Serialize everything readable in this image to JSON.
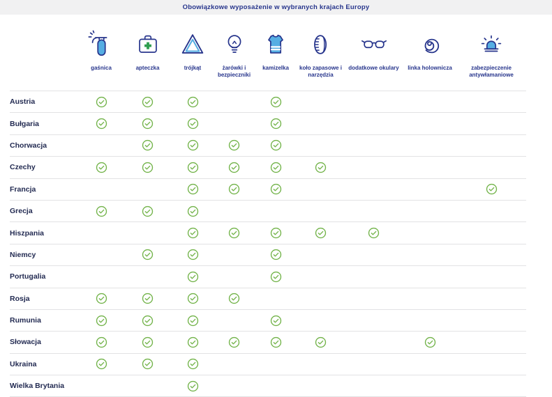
{
  "chart_data": {
    "type": "table",
    "title": "Obowiązkowe wyposażenie w wybranych krajach Europy",
    "columns": [
      {
        "label": "gaśnica",
        "icon": "fire-extinguisher-icon"
      },
      {
        "label": "apteczka",
        "icon": "first-aid-kit-icon"
      },
      {
        "label": "trójkąt",
        "icon": "warning-triangle-icon"
      },
      {
        "label": "żarówki i bezpieczniki",
        "icon": "light-bulb-icon"
      },
      {
        "label": "kamizelka",
        "icon": "safety-vest-icon"
      },
      {
        "label": "koło zapasowe i narzędzia",
        "icon": "spare-wheel-icon"
      },
      {
        "label": "dodatkowe okulary",
        "icon": "spare-glasses-icon"
      },
      {
        "label": "linka holownicza",
        "icon": "tow-rope-icon"
      },
      {
        "label": "zabezpieczenie antywłamaniowe",
        "icon": "anti-theft-alarm-icon"
      }
    ],
    "rows": [
      {
        "country": "Austria",
        "checks": [
          1,
          1,
          1,
          0,
          1,
          0,
          0,
          0,
          0
        ]
      },
      {
        "country": "Bułgaria",
        "checks": [
          1,
          1,
          1,
          0,
          1,
          0,
          0,
          0,
          0
        ]
      },
      {
        "country": "Chorwacja",
        "checks": [
          0,
          1,
          1,
          1,
          1,
          0,
          0,
          0,
          0
        ]
      },
      {
        "country": "Czechy",
        "checks": [
          1,
          1,
          1,
          1,
          1,
          1,
          0,
          0,
          0
        ]
      },
      {
        "country": "Francja",
        "checks": [
          0,
          0,
          1,
          1,
          1,
          0,
          0,
          0,
          1
        ]
      },
      {
        "country": "Grecja",
        "checks": [
          1,
          1,
          1,
          0,
          0,
          0,
          0,
          0,
          0
        ]
      },
      {
        "country": "Hiszpania",
        "checks": [
          0,
          0,
          1,
          1,
          1,
          1,
          1,
          0,
          0
        ]
      },
      {
        "country": "Niemcy",
        "checks": [
          0,
          1,
          1,
          0,
          1,
          0,
          0,
          0,
          0
        ]
      },
      {
        "country": "Portugalia",
        "checks": [
          0,
          0,
          1,
          0,
          1,
          0,
          0,
          0,
          0
        ]
      },
      {
        "country": "Rosja",
        "checks": [
          1,
          1,
          1,
          1,
          0,
          0,
          0,
          0,
          0
        ]
      },
      {
        "country": "Rumunia",
        "checks": [
          1,
          1,
          1,
          0,
          1,
          0,
          0,
          0,
          0
        ]
      },
      {
        "country": "Słowacja",
        "checks": [
          1,
          1,
          1,
          1,
          1,
          1,
          0,
          1,
          0
        ]
      },
      {
        "country": "Ukraina",
        "checks": [
          1,
          1,
          1,
          0,
          0,
          0,
          0,
          0,
          0
        ]
      },
      {
        "country": "Wielka Brytania",
        "checks": [
          0,
          0,
          1,
          0,
          0,
          0,
          0,
          0,
          0
        ]
      }
    ]
  },
  "colors": {
    "navy": "#27358c",
    "accent_blue": "#56aee3",
    "check_green": "#72b349",
    "cross_green": "#2f9e4f",
    "country_text": "#232b52",
    "row_border": "#e2e2e4",
    "title_bar_bg": "#f1f1f2"
  }
}
